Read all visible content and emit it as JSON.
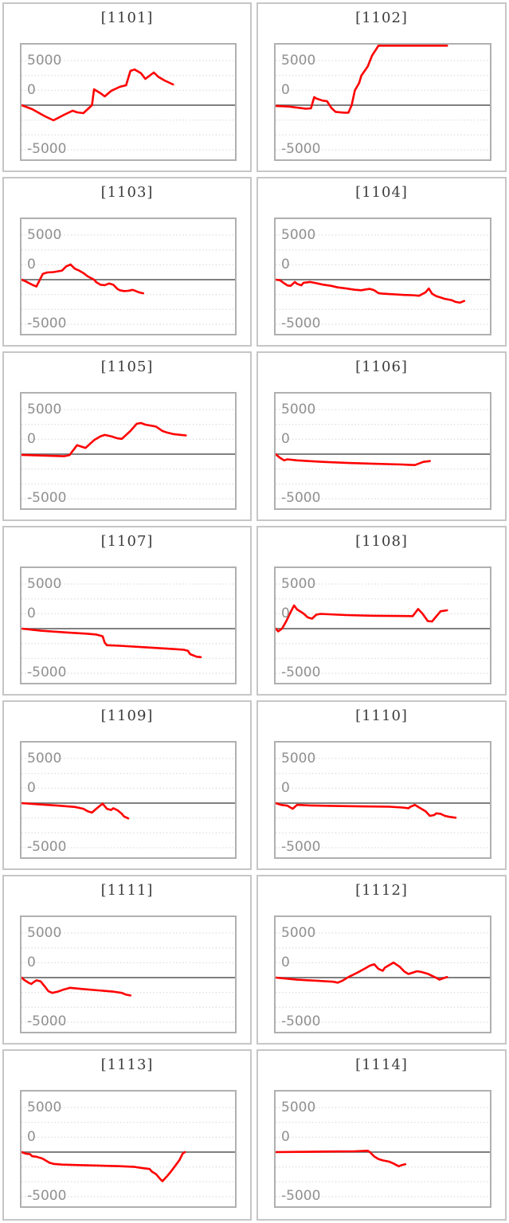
{
  "style": {
    "line_color": "#ff0000",
    "zero_line_color": "#6e6e6e",
    "grid_line_color": "#d6d6d6",
    "plot_border_color": "#b0b0b0",
    "cell_border_color": "#c6c6c6",
    "title_color": "#3b3b3b",
    "axis_label_color": "#909090",
    "background_color": "#ffffff"
  },
  "axis": {
    "y_tick_labels": [
      "5000",
      "0",
      "-5000"
    ],
    "ylim": [
      -6100,
      6800
    ],
    "zero_line_value": 0,
    "minor_gridline_values": [
      5000,
      3333,
      1667,
      -1667,
      -3333,
      -5000
    ]
  },
  "chart_data": [
    {
      "type": "line",
      "title": "[1101]",
      "points": [
        [
          0,
          0
        ],
        [
          0.05,
          -450
        ],
        [
          0.11,
          -1250
        ],
        [
          0.15,
          -1700
        ],
        [
          0.2,
          -1070
        ],
        [
          0.24,
          -620
        ],
        [
          0.26,
          -800
        ],
        [
          0.29,
          -890
        ],
        [
          0.31,
          -450
        ],
        [
          0.33,
          0
        ],
        [
          0.34,
          1780
        ],
        [
          0.37,
          1340
        ],
        [
          0.39,
          980
        ],
        [
          0.42,
          1600
        ],
        [
          0.46,
          2050
        ],
        [
          0.49,
          2230
        ],
        [
          0.51,
          3840
        ],
        [
          0.53,
          4000
        ],
        [
          0.56,
          3570
        ],
        [
          0.58,
          2950
        ],
        [
          0.62,
          3660
        ],
        [
          0.64,
          3200
        ],
        [
          0.67,
          2770
        ],
        [
          0.71,
          2320
        ]
      ]
    },
    {
      "type": "line",
      "title": "[1102]",
      "points": [
        [
          0,
          -80
        ],
        [
          0.06,
          -150
        ],
        [
          0.14,
          -390
        ],
        [
          0.165,
          -360
        ],
        [
          0.18,
          900
        ],
        [
          0.19,
          750
        ],
        [
          0.22,
          510
        ],
        [
          0.24,
          450
        ],
        [
          0.26,
          -300
        ],
        [
          0.28,
          -750
        ],
        [
          0.32,
          -840
        ],
        [
          0.34,
          -840
        ],
        [
          0.355,
          0
        ],
        [
          0.37,
          1650
        ],
        [
          0.39,
          2490
        ],
        [
          0.4,
          3300
        ],
        [
          0.43,
          4350
        ],
        [
          0.45,
          5550
        ],
        [
          0.48,
          6790
        ],
        [
          0.8,
          6790
        ]
      ]
    },
    {
      "type": "line",
      "title": "[1103]",
      "points": [
        [
          0,
          0
        ],
        [
          0.02,
          -200
        ],
        [
          0.05,
          -570
        ],
        [
          0.07,
          -770
        ],
        [
          0.1,
          650
        ],
        [
          0.12,
          800
        ],
        [
          0.15,
          850
        ],
        [
          0.19,
          1020
        ],
        [
          0.21,
          1500
        ],
        [
          0.23,
          1700
        ],
        [
          0.25,
          1220
        ],
        [
          0.27,
          1020
        ],
        [
          0.29,
          740
        ],
        [
          0.31,
          370
        ],
        [
          0.34,
          0
        ],
        [
          0.35,
          -280
        ],
        [
          0.37,
          -570
        ],
        [
          0.39,
          -620
        ],
        [
          0.41,
          -430
        ],
        [
          0.43,
          -570
        ],
        [
          0.45,
          -1050
        ],
        [
          0.46,
          -1190
        ],
        [
          0.48,
          -1280
        ],
        [
          0.5,
          -1250
        ],
        [
          0.52,
          -1140
        ],
        [
          0.53,
          -1220
        ],
        [
          0.55,
          -1420
        ],
        [
          0.57,
          -1530
        ]
      ]
    },
    {
      "type": "line",
      "title": "[1104]",
      "points": [
        [
          0,
          0
        ],
        [
          0.02,
          -60
        ],
        [
          0.04,
          -400
        ],
        [
          0.055,
          -640
        ],
        [
          0.07,
          -700
        ],
        [
          0.09,
          -260
        ],
        [
          0.1,
          -460
        ],
        [
          0.12,
          -640
        ],
        [
          0.13,
          -350
        ],
        [
          0.16,
          -260
        ],
        [
          0.18,
          -350
        ],
        [
          0.22,
          -550
        ],
        [
          0.26,
          -700
        ],
        [
          0.29,
          -870
        ],
        [
          0.33,
          -990
        ],
        [
          0.37,
          -1130
        ],
        [
          0.4,
          -1190
        ],
        [
          0.42,
          -1100
        ],
        [
          0.44,
          -1040
        ],
        [
          0.46,
          -1190
        ],
        [
          0.48,
          -1510
        ],
        [
          0.5,
          -1570
        ],
        [
          0.53,
          -1620
        ],
        [
          0.56,
          -1650
        ],
        [
          0.6,
          -1710
        ],
        [
          0.64,
          -1740
        ],
        [
          0.67,
          -1800
        ],
        [
          0.7,
          -1420
        ],
        [
          0.715,
          -990
        ],
        [
          0.73,
          -1570
        ],
        [
          0.75,
          -1860
        ],
        [
          0.77,
          -2000
        ],
        [
          0.79,
          -2150
        ],
        [
          0.82,
          -2290
        ],
        [
          0.84,
          -2490
        ],
        [
          0.86,
          -2580
        ],
        [
          0.88,
          -2380
        ]
      ]
    },
    {
      "type": "line",
      "title": "[1105]",
      "points": [
        [
          0,
          -80
        ],
        [
          0.09,
          -150
        ],
        [
          0.15,
          -200
        ],
        [
          0.2,
          -230
        ],
        [
          0.225,
          -100
        ],
        [
          0.26,
          1000
        ],
        [
          0.3,
          700
        ],
        [
          0.34,
          1570
        ],
        [
          0.37,
          2000
        ],
        [
          0.39,
          2150
        ],
        [
          0.42,
          2000
        ],
        [
          0.45,
          1770
        ],
        [
          0.47,
          1715
        ],
        [
          0.51,
          2600
        ],
        [
          0.54,
          3400
        ],
        [
          0.56,
          3490
        ],
        [
          0.58,
          3300
        ],
        [
          0.63,
          3090
        ],
        [
          0.66,
          2600
        ],
        [
          0.68,
          2430
        ],
        [
          0.71,
          2250
        ],
        [
          0.77,
          2100
        ]
      ]
    },
    {
      "type": "line",
      "title": "[1106]",
      "points": [
        [
          0,
          0
        ],
        [
          0.02,
          -400
        ],
        [
          0.04,
          -700
        ],
        [
          0.055,
          -580
        ],
        [
          0.1,
          -700
        ],
        [
          0.22,
          -870
        ],
        [
          0.34,
          -990
        ],
        [
          0.46,
          -1080
        ],
        [
          0.59,
          -1160
        ],
        [
          0.65,
          -1220
        ],
        [
          0.69,
          -870
        ],
        [
          0.72,
          -780
        ]
      ]
    },
    {
      "type": "line",
      "title": "[1107]",
      "points": [
        [
          0,
          0
        ],
        [
          0.09,
          -230
        ],
        [
          0.21,
          -430
        ],
        [
          0.31,
          -570
        ],
        [
          0.35,
          -660
        ],
        [
          0.38,
          -860
        ],
        [
          0.39,
          -1570
        ],
        [
          0.4,
          -1860
        ],
        [
          0.46,
          -1920
        ],
        [
          0.58,
          -2090
        ],
        [
          0.71,
          -2290
        ],
        [
          0.76,
          -2370
        ],
        [
          0.78,
          -2490
        ],
        [
          0.79,
          -2860
        ],
        [
          0.82,
          -3140
        ],
        [
          0.84,
          -3200
        ]
      ]
    },
    {
      "type": "line",
      "title": "[1108]",
      "points": [
        [
          0,
          0
        ],
        [
          0.012,
          -300
        ],
        [
          0.03,
          0
        ],
        [
          0.05,
          850
        ],
        [
          0.067,
          1700
        ],
        [
          0.086,
          2600
        ],
        [
          0.1,
          2150
        ],
        [
          0.13,
          1700
        ],
        [
          0.15,
          1260
        ],
        [
          0.17,
          1120
        ],
        [
          0.19,
          1560
        ],
        [
          0.21,
          1650
        ],
        [
          0.33,
          1520
        ],
        [
          0.45,
          1450
        ],
        [
          0.64,
          1400
        ],
        [
          0.665,
          2200
        ],
        [
          0.685,
          1700
        ],
        [
          0.71,
          850
        ],
        [
          0.73,
          800
        ],
        [
          0.77,
          1950
        ],
        [
          0.8,
          2050
        ]
      ]
    },
    {
      "type": "line",
      "title": "[1109]",
      "points": [
        [
          0,
          0
        ],
        [
          0.09,
          -150
        ],
        [
          0.175,
          -290
        ],
        [
          0.25,
          -430
        ],
        [
          0.29,
          -630
        ],
        [
          0.31,
          -915
        ],
        [
          0.33,
          -1060
        ],
        [
          0.35,
          -630
        ],
        [
          0.38,
          -60
        ],
        [
          0.4,
          -630
        ],
        [
          0.42,
          -770
        ],
        [
          0.43,
          -570
        ],
        [
          0.45,
          -800
        ],
        [
          0.47,
          -1200
        ],
        [
          0.48,
          -1490
        ],
        [
          0.5,
          -1715
        ]
      ]
    },
    {
      "type": "line",
      "title": "[1110]",
      "points": [
        [
          0,
          0
        ],
        [
          0.025,
          -200
        ],
        [
          0.055,
          -290
        ],
        [
          0.08,
          -630
        ],
        [
          0.1,
          -200
        ],
        [
          0.16,
          -260
        ],
        [
          0.28,
          -320
        ],
        [
          0.4,
          -370
        ],
        [
          0.53,
          -400
        ],
        [
          0.59,
          -490
        ],
        [
          0.62,
          -570
        ],
        [
          0.63,
          -400
        ],
        [
          0.65,
          -200
        ],
        [
          0.67,
          -490
        ],
        [
          0.7,
          -915
        ],
        [
          0.72,
          -1430
        ],
        [
          0.74,
          -1340
        ],
        [
          0.75,
          -1140
        ],
        [
          0.77,
          -1200
        ],
        [
          0.79,
          -1430
        ],
        [
          0.81,
          -1540
        ],
        [
          0.84,
          -1630
        ]
      ]
    },
    {
      "type": "line",
      "title": "[1111]",
      "points": [
        [
          0,
          0
        ],
        [
          0.015,
          -300
        ],
        [
          0.033,
          -570
        ],
        [
          0.046,
          -715
        ],
        [
          0.058,
          -490
        ],
        [
          0.07,
          -300
        ],
        [
          0.09,
          -430
        ],
        [
          0.107,
          -940
        ],
        [
          0.126,
          -1515
        ],
        [
          0.144,
          -1715
        ],
        [
          0.17,
          -1570
        ],
        [
          0.194,
          -1370
        ],
        [
          0.22,
          -1200
        ],
        [
          0.227,
          -1140
        ],
        [
          0.29,
          -1290
        ],
        [
          0.36,
          -1430
        ],
        [
          0.43,
          -1570
        ],
        [
          0.47,
          -1715
        ],
        [
          0.49,
          -1915
        ],
        [
          0.51,
          -2000
        ]
      ]
    },
    {
      "type": "line",
      "title": "[1112]",
      "points": [
        [
          0,
          0
        ],
        [
          0.1,
          -230
        ],
        [
          0.2,
          -370
        ],
        [
          0.27,
          -460
        ],
        [
          0.29,
          -570
        ],
        [
          0.31,
          -370
        ],
        [
          0.34,
          60
        ],
        [
          0.38,
          540
        ],
        [
          0.42,
          1060
        ],
        [
          0.44,
          1340
        ],
        [
          0.46,
          1490
        ],
        [
          0.48,
          970
        ],
        [
          0.5,
          770
        ],
        [
          0.51,
          1120
        ],
        [
          0.55,
          1690
        ],
        [
          0.58,
          1200
        ],
        [
          0.6,
          700
        ],
        [
          0.62,
          400
        ],
        [
          0.66,
          715
        ],
        [
          0.68,
          630
        ],
        [
          0.71,
          430
        ],
        [
          0.73,
          200
        ],
        [
          0.75,
          -30
        ],
        [
          0.765,
          -230
        ],
        [
          0.78,
          -90
        ],
        [
          0.8,
          60
        ]
      ]
    },
    {
      "type": "line",
      "title": "[1113]",
      "points": [
        [
          0,
          0
        ],
        [
          0.02,
          -170
        ],
        [
          0.04,
          -230
        ],
        [
          0.05,
          -460
        ],
        [
          0.07,
          -520
        ],
        [
          0.08,
          -600
        ],
        [
          0.095,
          -690
        ],
        [
          0.11,
          -890
        ],
        [
          0.13,
          -1175
        ],
        [
          0.15,
          -1320
        ],
        [
          0.19,
          -1400
        ],
        [
          0.25,
          -1450
        ],
        [
          0.32,
          -1490
        ],
        [
          0.39,
          -1540
        ],
        [
          0.46,
          -1580
        ],
        [
          0.53,
          -1660
        ],
        [
          0.57,
          -1800
        ],
        [
          0.6,
          -1890
        ],
        [
          0.61,
          -2175
        ],
        [
          0.63,
          -2460
        ],
        [
          0.65,
          -3030
        ],
        [
          0.66,
          -3260
        ],
        [
          0.68,
          -2750
        ],
        [
          0.7,
          -2175
        ],
        [
          0.72,
          -1545
        ],
        [
          0.74,
          -890
        ],
        [
          0.755,
          -170
        ],
        [
          0.765,
          0
        ]
      ]
    },
    {
      "type": "line",
      "title": "[1114]",
      "points": [
        [
          0,
          0
        ],
        [
          0.12,
          30
        ],
        [
          0.24,
          60
        ],
        [
          0.37,
          90
        ],
        [
          0.43,
          150
        ],
        [
          0.44,
          0
        ],
        [
          0.46,
          -490
        ],
        [
          0.48,
          -780
        ],
        [
          0.5,
          -925
        ],
        [
          0.53,
          -1070
        ],
        [
          0.55,
          -1275
        ],
        [
          0.575,
          -1590
        ],
        [
          0.59,
          -1445
        ],
        [
          0.605,
          -1360
        ]
      ]
    }
  ]
}
